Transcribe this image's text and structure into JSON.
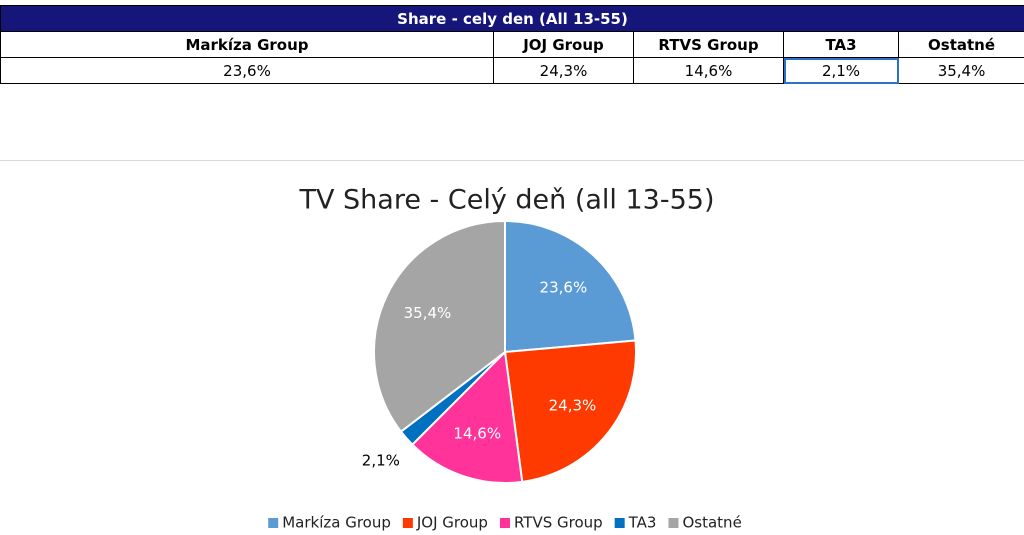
{
  "table": {
    "title": "Share - cely den (All 13-55)",
    "headers": [
      "Markíza Group",
      "JOJ Group",
      "RTVS Group",
      "TA3",
      "Ostatné"
    ],
    "rows": [
      [
        "23,6%",
        "24,3%",
        "14,6%",
        "2,1%",
        "35,4%"
      ]
    ]
  },
  "chart_data": {
    "type": "pie",
    "title": "TV Share - Celý deň (all 13-55)",
    "categories": [
      "Markíza Group",
      "JOJ Group",
      "RTVS Group",
      "TA3",
      "Ostatné"
    ],
    "values": [
      23.6,
      24.3,
      14.6,
      2.1,
      35.4
    ],
    "value_labels": [
      "23,6%",
      "24,3%",
      "14,6%",
      "2,1%",
      "35,4%"
    ],
    "colors": [
      "#5b9bd5",
      "#ff3a00",
      "#ff3399",
      "#0070c0",
      "#a5a5a5"
    ],
    "legend": "bottom"
  }
}
